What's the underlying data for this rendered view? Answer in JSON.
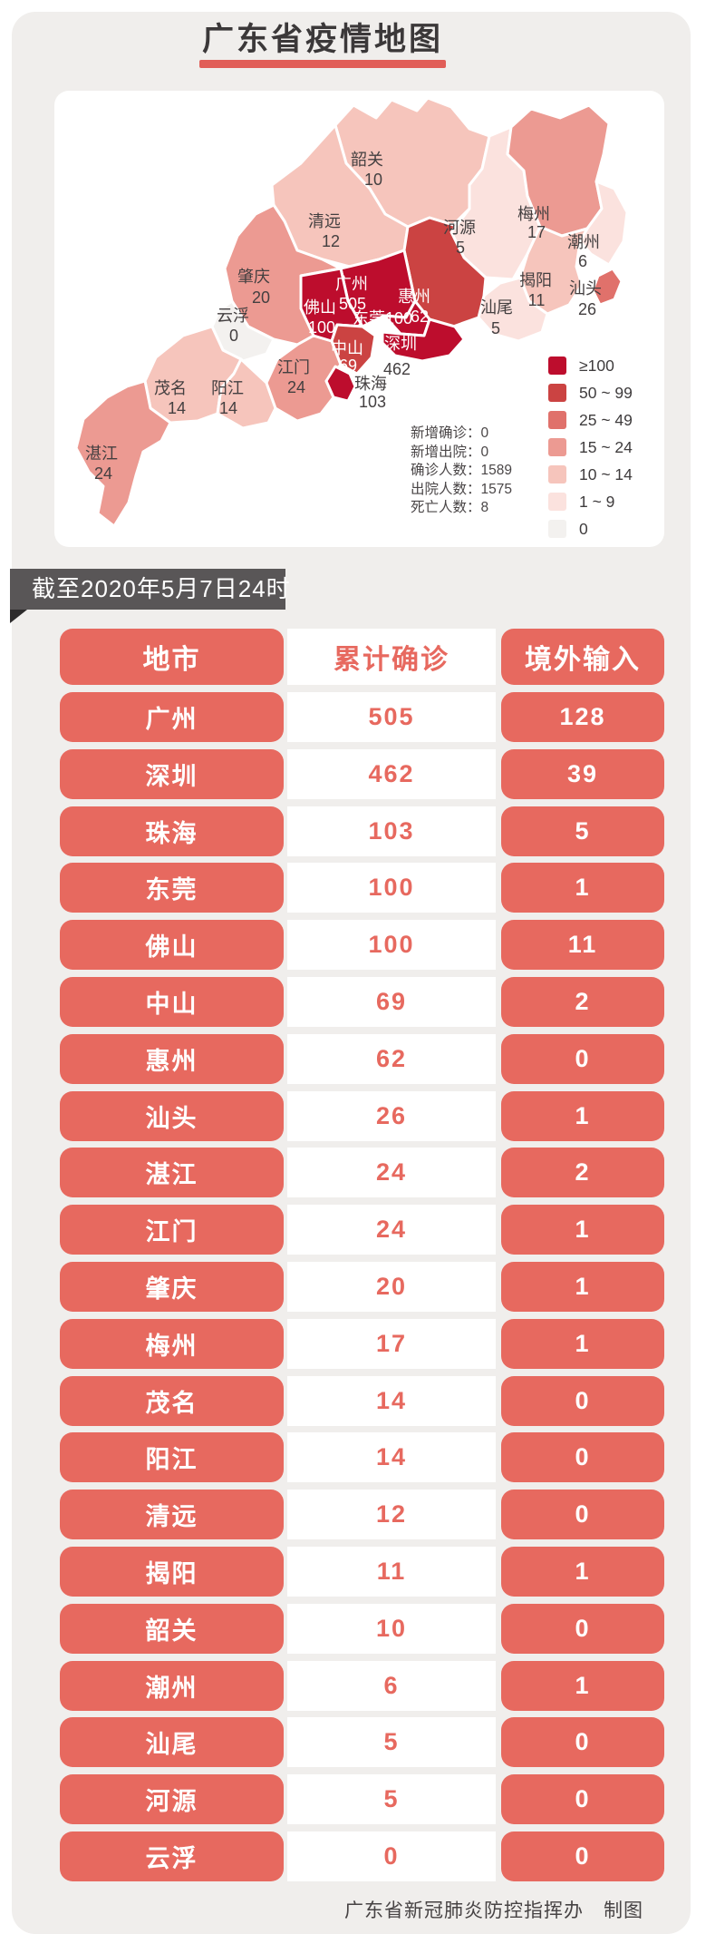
{
  "title": "广东省疫情地图",
  "colors": {
    "accent_red": "#e7695f",
    "title_underline": "#e15e58",
    "banner_bg": "#595657",
    "card_bg": "#f0eeec",
    "map_label_dark": "#433f40",
    "map_label_light": "#ffffff"
  },
  "map": {
    "bucket_colors": {
      "gte100": "#bd0d2d",
      "b50_99": "#cb4342",
      "b25_49": "#e0716b",
      "b15_24": "#ec9a92",
      "b10_14": "#f6c5bc",
      "b1_9": "#fbe2de",
      "zero": "#f3f1ef"
    },
    "legend": [
      {
        "range": "≥100",
        "color": "#bd0d2d"
      },
      {
        "range": "50 ~ 99",
        "color": "#cb4342"
      },
      {
        "range": "25 ~ 49",
        "color": "#e0716b"
      },
      {
        "range": "15 ~ 24",
        "color": "#ec9a92"
      },
      {
        "range": "10 ~ 14",
        "color": "#f6c5bc"
      },
      {
        "range": "1 ~ 9",
        "color": "#fbe2de"
      },
      {
        "range": "0",
        "color": "#f3f1ef"
      }
    ],
    "stats_separator": "：",
    "stats": [
      {
        "label": "新增确诊",
        "value": "0"
      },
      {
        "label": "新增出院",
        "value": "0"
      },
      {
        "label": "确诊人数",
        "value": "1589"
      },
      {
        "label": "出院人数",
        "value": "1575"
      },
      {
        "label": "死亡人数",
        "value": "8"
      }
    ],
    "regions": [
      {
        "id": "shaoguan",
        "name": "韶关",
        "value": "10",
        "bucket": "b10_14"
      },
      {
        "id": "qingyuan",
        "name": "清远",
        "value": "12",
        "bucket": "b10_14"
      },
      {
        "id": "heyuan",
        "name": "河源",
        "value": "5",
        "bucket": "b1_9"
      },
      {
        "id": "meizhou",
        "name": "梅州",
        "value": "17",
        "bucket": "b15_24"
      },
      {
        "id": "chaozhou",
        "name": "潮州",
        "value": "6",
        "bucket": "b1_9"
      },
      {
        "id": "jieyang",
        "name": "揭阳",
        "value": "11",
        "bucket": "b10_14"
      },
      {
        "id": "shanwei",
        "name": "汕尾",
        "value": "5",
        "bucket": "b1_9"
      },
      {
        "id": "zhaoqing",
        "name": "肇庆",
        "value": "20",
        "bucket": "b15_24"
      },
      {
        "id": "yunfu",
        "name": "云浮",
        "value": "0",
        "bucket": "zero"
      },
      {
        "id": "maoming",
        "name": "茂名",
        "value": "14",
        "bucket": "b10_14"
      },
      {
        "id": "yangjiang",
        "name": "阳江",
        "value": "14",
        "bucket": "b10_14"
      },
      {
        "id": "zhanjiang",
        "name": "湛江",
        "value": "24",
        "bucket": "b15_24"
      },
      {
        "id": "jiangmen",
        "name": "江门",
        "value": "24",
        "bucket": "b15_24"
      },
      {
        "id": "huizhou",
        "name": "惠州",
        "value": "62",
        "bucket": "b50_99"
      },
      {
        "id": "guangzhou",
        "name": "广州",
        "value": "505",
        "bucket": "gte100"
      },
      {
        "id": "foshan",
        "name": "佛山",
        "value": "100",
        "bucket": "gte100"
      },
      {
        "id": "dongguan",
        "name": "东莞",
        "value": "100",
        "bucket": "gte100"
      },
      {
        "id": "shenzhen",
        "name": "深圳",
        "value": "462",
        "bucket": "gte100"
      },
      {
        "id": "zhongshan",
        "name": "中山",
        "value": "69",
        "bucket": "b50_99"
      },
      {
        "id": "zhuhai",
        "name": "珠海",
        "value": "103",
        "bucket": "gte100"
      },
      {
        "id": "shantou",
        "name": "汕头",
        "value": "26",
        "bucket": "b25_49"
      }
    ]
  },
  "banner": {
    "text": "截至2020年5月7日24时"
  },
  "table": {
    "headers": [
      "地市",
      "累计确诊",
      "境外输入"
    ],
    "rows": [
      [
        "广州",
        "505",
        "128"
      ],
      [
        "深圳",
        "462",
        "39"
      ],
      [
        "珠海",
        "103",
        "5"
      ],
      [
        "东莞",
        "100",
        "1"
      ],
      [
        "佛山",
        "100",
        "11"
      ],
      [
        "中山",
        "69",
        "2"
      ],
      [
        "惠州",
        "62",
        "0"
      ],
      [
        "汕头",
        "26",
        "1"
      ],
      [
        "湛江",
        "24",
        "2"
      ],
      [
        "江门",
        "24",
        "1"
      ],
      [
        "肇庆",
        "20",
        "1"
      ],
      [
        "梅州",
        "17",
        "1"
      ],
      [
        "茂名",
        "14",
        "0"
      ],
      [
        "阳江",
        "14",
        "0"
      ],
      [
        "清远",
        "12",
        "0"
      ],
      [
        "揭阳",
        "11",
        "1"
      ],
      [
        "韶关",
        "10",
        "0"
      ],
      [
        "潮州",
        "6",
        "1"
      ],
      [
        "汕尾",
        "5",
        "0"
      ],
      [
        "河源",
        "5",
        "0"
      ],
      [
        "云浮",
        "0",
        "0"
      ]
    ]
  },
  "footer": {
    "text": "广东省新冠肺炎防控指挥办　制图"
  },
  "chart_data": {
    "type": "table",
    "title": "广东省疫情地图",
    "as_of": "截至2020年5月7日24时",
    "columns": [
      "地市",
      "累计确诊",
      "境外输入"
    ],
    "rows": [
      [
        "广州",
        505,
        128
      ],
      [
        "深圳",
        462,
        39
      ],
      [
        "珠海",
        103,
        5
      ],
      [
        "东莞",
        100,
        1
      ],
      [
        "佛山",
        100,
        11
      ],
      [
        "中山",
        69,
        2
      ],
      [
        "惠州",
        62,
        0
      ],
      [
        "汕头",
        26,
        1
      ],
      [
        "湛江",
        24,
        2
      ],
      [
        "江门",
        24,
        1
      ],
      [
        "肇庆",
        20,
        1
      ],
      [
        "梅州",
        17,
        1
      ],
      [
        "茂名",
        14,
        0
      ],
      [
        "阳江",
        14,
        0
      ],
      [
        "清远",
        12,
        0
      ],
      [
        "揭阳",
        11,
        1
      ],
      [
        "韶关",
        10,
        0
      ],
      [
        "潮州",
        6,
        1
      ],
      [
        "汕尾",
        5,
        0
      ],
      [
        "河源",
        5,
        0
      ],
      [
        "云浮",
        0,
        0
      ]
    ],
    "summary": {
      "新增确诊": 0,
      "新增出院": 0,
      "确诊人数": 1589,
      "出院人数": 1575,
      "死亡人数": 8
    },
    "legend_bins": [
      "≥100",
      "50~99",
      "25~49",
      "15~24",
      "10~14",
      "1~9",
      "0"
    ],
    "map_type": "choropleth"
  }
}
